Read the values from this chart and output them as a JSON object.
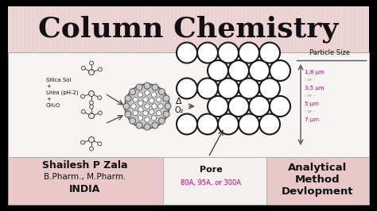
{
  "title": "Column Chemistry",
  "title_fontsize": 26,
  "title_bg": "#f0d8d8",
  "content_bg": "#f5f0f0",
  "bottom_left_bg": "#e8c8c8",
  "bottom_right_bg": "#e8c8c8",
  "bottom_center_bg": "#f5f0f0",
  "left_label_line1": "Shailesh P Zala",
  "left_label_line2": "B.Pharm., M.Pharm.",
  "left_label_line3": "INDIA",
  "right_label_line1": "Analytical",
  "right_label_line2": "Method",
  "right_label_line3": "Devlopment",
  "particle_size_label": "Particle Size",
  "particle_sizes": [
    "1.8 μm",
    "- or -",
    "3.5 μm",
    "- or -",
    "5 μm",
    "- or -",
    "7 μm"
  ],
  "pore_label": "Pore",
  "pore_sizes": "80A, 95A, or 300A",
  "delta_label": "Δ",
  "o2_label": "O₂",
  "outer_bg": "#000000",
  "text_color_main": "#111111",
  "text_color_magenta": "#cc0066",
  "particle_size_color": "#cc0066",
  "stripe_color": "#e0c8c8",
  "silica_label1": "Silica Sol",
  "silica_label2": "+",
  "silica_label3": "Urea (pH-2)",
  "silica_label4": "+",
  "silica_label5": "CH₂O"
}
